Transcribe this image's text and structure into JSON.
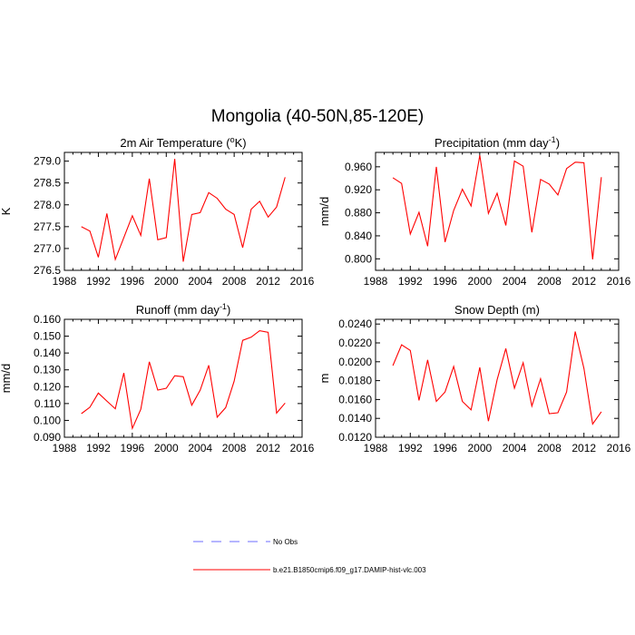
{
  "figure": {
    "title": "Mongolia (40-50N,85-120E)"
  },
  "legend": {
    "entries": [
      {
        "label": "No Obs",
        "color": "#6b6bff",
        "style": "dashed"
      },
      {
        "label": "b.e21.B1850cmip6.f09_g17.DAMIP-hist-vlc.003",
        "color": "#ff0000",
        "style": "solid"
      }
    ]
  },
  "chart_data": [
    {
      "type": "line",
      "title": "2m Air Temperature (",
      "title_sup": "o",
      "title_tail": "K)",
      "xlabel": "",
      "ylabel": "K",
      "xlim": [
        1988,
        2016
      ],
      "xticks": [
        1988,
        1992,
        1996,
        2000,
        2004,
        2008,
        2012,
        2016
      ],
      "ylim": [
        276.5,
        279.2
      ],
      "yticks": [
        "276.5",
        "277.0",
        "277.5",
        "278.0",
        "278.5",
        "279.0"
      ],
      "x": [
        1990,
        1991,
        1992,
        1993,
        1994,
        1995,
        1996,
        1997,
        1998,
        1999,
        2000,
        2001,
        2002,
        2003,
        2004,
        2005,
        2006,
        2007,
        2008,
        2009,
        2010,
        2011,
        2012,
        2013,
        2014
      ],
      "series": [
        {
          "name": "b.e21.B1850cmip6.f09_g17.DAMIP-hist-vlc.003",
          "color": "#ff0000",
          "values": [
            277.5,
            277.4,
            276.8,
            277.8,
            276.75,
            277.25,
            277.75,
            277.3,
            278.6,
            277.2,
            277.25,
            279.05,
            276.7,
            277.78,
            277.82,
            278.28,
            278.15,
            277.9,
            277.78,
            277.02,
            277.9,
            278.08,
            277.72,
            277.95,
            278.63
          ]
        }
      ]
    },
    {
      "type": "line",
      "title": "Precipitation (mm day",
      "title_sup": "-1",
      "title_tail": ")",
      "xlabel": "",
      "ylabel": "mm/d",
      "xlim": [
        1988,
        2016
      ],
      "xticks": [
        1988,
        1992,
        1996,
        2000,
        2004,
        2008,
        2012,
        2016
      ],
      "ylim": [
        0.78,
        0.985
      ],
      "yticks": [
        "0.800",
        "0.840",
        "0.880",
        "0.920",
        "0.960"
      ],
      "x": [
        1990,
        1991,
        1992,
        1993,
        1994,
        1995,
        1996,
        1997,
        1998,
        1999,
        2000,
        2001,
        2002,
        2003,
        2004,
        2005,
        2006,
        2007,
        2008,
        2009,
        2010,
        2011,
        2012,
        2013,
        2014
      ],
      "series": [
        {
          "name": "b.e21.B1850cmip6.f09_g17.DAMIP-hist-vlc.003",
          "color": "#ff0000",
          "values": [
            0.941,
            0.931,
            0.843,
            0.881,
            0.822,
            0.96,
            0.829,
            0.884,
            0.921,
            0.892,
            0.98,
            0.879,
            0.914,
            0.858,
            0.97,
            0.961,
            0.846,
            0.938,
            0.93,
            0.911,
            0.957,
            0.968,
            0.967,
            0.799,
            0.942
          ]
        }
      ]
    },
    {
      "type": "line",
      "title": "Runoff (mm day",
      "title_sup": "-1",
      "title_tail": ")",
      "xlabel": "",
      "ylabel": "mm/d",
      "xlim": [
        1988,
        2016
      ],
      "xticks": [
        1988,
        1992,
        1996,
        2000,
        2004,
        2008,
        2012,
        2016
      ],
      "ylim": [
        0.09,
        0.16
      ],
      "yticks": [
        "0.090",
        "0.100",
        "0.110",
        "0.120",
        "0.130",
        "0.140",
        "0.150",
        "0.160"
      ],
      "x": [
        1990,
        1991,
        1992,
        1993,
        1994,
        1995,
        1996,
        1997,
        1998,
        1999,
        2000,
        2001,
        2002,
        2003,
        2004,
        2005,
        2006,
        2007,
        2008,
        2009,
        2010,
        2011,
        2012,
        2013,
        2014
      ],
      "series": [
        {
          "name": "b.e21.B1850cmip6.f09_g17.DAMIP-hist-vlc.003",
          "color": "#ff0000",
          "values": [
            0.104,
            0.1078,
            0.1162,
            0.1115,
            0.1069,
            0.1282,
            0.0953,
            0.1066,
            0.1348,
            0.118,
            0.1191,
            0.1265,
            0.1259,
            0.109,
            0.118,
            0.1327,
            0.1019,
            0.1076,
            0.1233,
            0.1475,
            0.1494,
            0.1532,
            0.1523,
            0.1043,
            0.1103
          ]
        }
      ]
    },
    {
      "type": "line",
      "title": "Snow Depth (m)",
      "title_sup": "",
      "title_tail": "",
      "xlabel": "",
      "ylabel": "m",
      "xlim": [
        1988,
        2016
      ],
      "xticks": [
        1988,
        1992,
        1996,
        2000,
        2004,
        2008,
        2012,
        2016
      ],
      "ylim": [
        0.012,
        0.0245
      ],
      "yticks": [
        "0.0120",
        "0.0140",
        "0.0160",
        "0.0180",
        "0.0200",
        "0.0220",
        "0.0240"
      ],
      "x": [
        1990,
        1991,
        1992,
        1993,
        1994,
        1995,
        1996,
        1997,
        1998,
        1999,
        2000,
        2001,
        2002,
        2003,
        2004,
        2005,
        2006,
        2007,
        2008,
        2009,
        2010,
        2011,
        2012,
        2013,
        2014
      ],
      "series": [
        {
          "name": "b.e21.B1850cmip6.f09_g17.DAMIP-hist-vlc.003",
          "color": "#ff0000",
          "values": [
            0.0196,
            0.0218,
            0.0212,
            0.0159,
            0.0202,
            0.0158,
            0.0168,
            0.0195,
            0.0158,
            0.0149,
            0.0194,
            0.0137,
            0.0181,
            0.0214,
            0.0172,
            0.0199,
            0.0153,
            0.0182,
            0.0145,
            0.0146,
            0.0168,
            0.0232,
            0.0193,
            0.0134,
            0.0147
          ]
        }
      ]
    }
  ]
}
